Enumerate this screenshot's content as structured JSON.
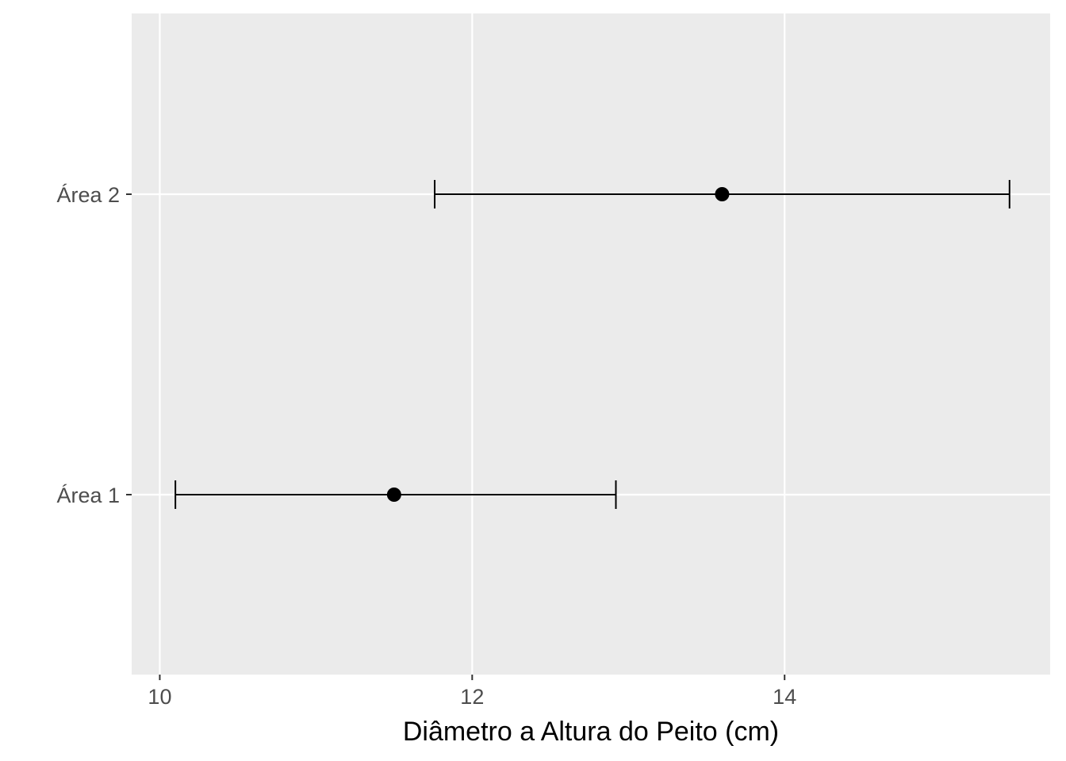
{
  "chart_data": {
    "type": "errorbar",
    "orientation": "horizontal",
    "title": "",
    "xlabel": "Diâmetro a Altura do Peito (cm)",
    "ylabel": "",
    "xlim": [
      9.82,
      15.7
    ],
    "x_ticks": [
      10,
      12,
      14
    ],
    "x_tick_labels": [
      "10",
      "12",
      "14"
    ],
    "categories": [
      "Área 1",
      "Área 2"
    ],
    "series": [
      {
        "points": [
          {
            "category": "Área 1",
            "mean": 11.5,
            "lower": 10.1,
            "upper": 12.92
          },
          {
            "category": "Área 2",
            "mean": 13.6,
            "lower": 11.76,
            "upper": 15.44
          }
        ]
      }
    ],
    "grid": true,
    "legend": "none",
    "colors": {
      "panel_background": "#ebebeb",
      "grid": "#ffffff",
      "marks": "#000000",
      "tick_text": "#4d4d4d",
      "axis_title": "#000000"
    }
  }
}
